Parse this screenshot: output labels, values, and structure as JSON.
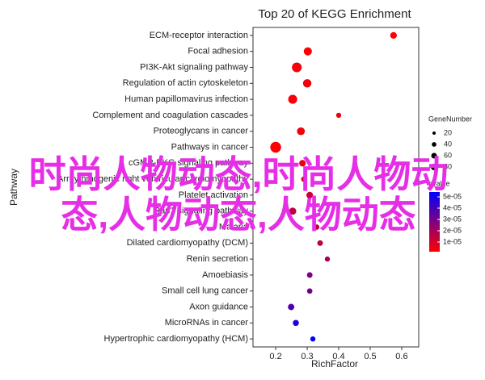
{
  "chart_data": {
    "type": "dot",
    "title": "Top 20 of KEGG Enrichment",
    "xlabel": "RichFactor",
    "ylabel": "Pathway",
    "categories": [
      "ECM-receptor interaction",
      "Focal adhesion",
      "PI3K-Akt signaling pathway",
      "Regulation of actin cytoskeleton",
      "Human papillomavirus infection",
      "Complement and coagulation cascades",
      "Proteoglycans in cancer",
      "Pathways in cancer",
      "cGMP-PKG signaling pathway",
      "Arrhythmogenic right ventricular cardiomyopathy",
      "Platelet activation",
      "Rap1 signaling pathway",
      "Malaria",
      "Dilated cardiomyopathy (DCM)",
      "Renin secretion",
      "Amoebiasis",
      "Small cell lung cancer",
      "Axon guidance",
      "MicroRNAs in cancer",
      "Hypertrophic cardiomyopathy (HCM)"
    ],
    "rich_factor": [
      0.574,
      0.302,
      0.267,
      0.3,
      0.254,
      0.4,
      0.28,
      0.2,
      0.285,
      0.29,
      0.308,
      0.254,
      0.33,
      0.341,
      0.364,
      0.308,
      0.308,
      0.249,
      0.264,
      0.318
    ],
    "gene_number": [
      30,
      45,
      65,
      48,
      55,
      18,
      42,
      80,
      30,
      22,
      30,
      35,
      20,
      22,
      18,
      22,
      20,
      28,
      25,
      18
    ],
    "qvalue": [
      1.5e-06,
      2e-06,
      3e-06,
      4e-06,
      3e-06,
      5e-06,
      4e-06,
      2e-06,
      6e-06,
      1e-05,
      1.2e-05,
      1.5e-05,
      1.5e-05,
      1.6e-05,
      2e-05,
      2.8e-05,
      3e-05,
      3.8e-05,
      4.8e-05,
      5.4e-05
    ],
    "xlim": [
      0.128,
      0.654
    ],
    "xticks": [
      0.2,
      0.3,
      0.4,
      0.5,
      0.6
    ],
    "size_legend_title": "GeneNumber",
    "size_legend": [
      20,
      40,
      60,
      80
    ],
    "color_legend_title": "qvalue",
    "clim": [
      1.4e-06,
      5.43e-05
    ],
    "cticks": [
      {
        "value": 5e-05,
        "label": "5e-05"
      },
      {
        "value": 4e-05,
        "label": "4e-05"
      },
      {
        "value": 3e-05,
        "label": "3e-05"
      },
      {
        "value": 2e-05,
        "label": "2e-05"
      },
      {
        "value": 1e-05,
        "label": "1e-05"
      }
    ],
    "color_low": "#ff0000",
    "color_high": "#0000ff",
    "watermark": [
      "时尚人物动态,时尚人物动",
      "态,人物动态,人物动态"
    ]
  }
}
